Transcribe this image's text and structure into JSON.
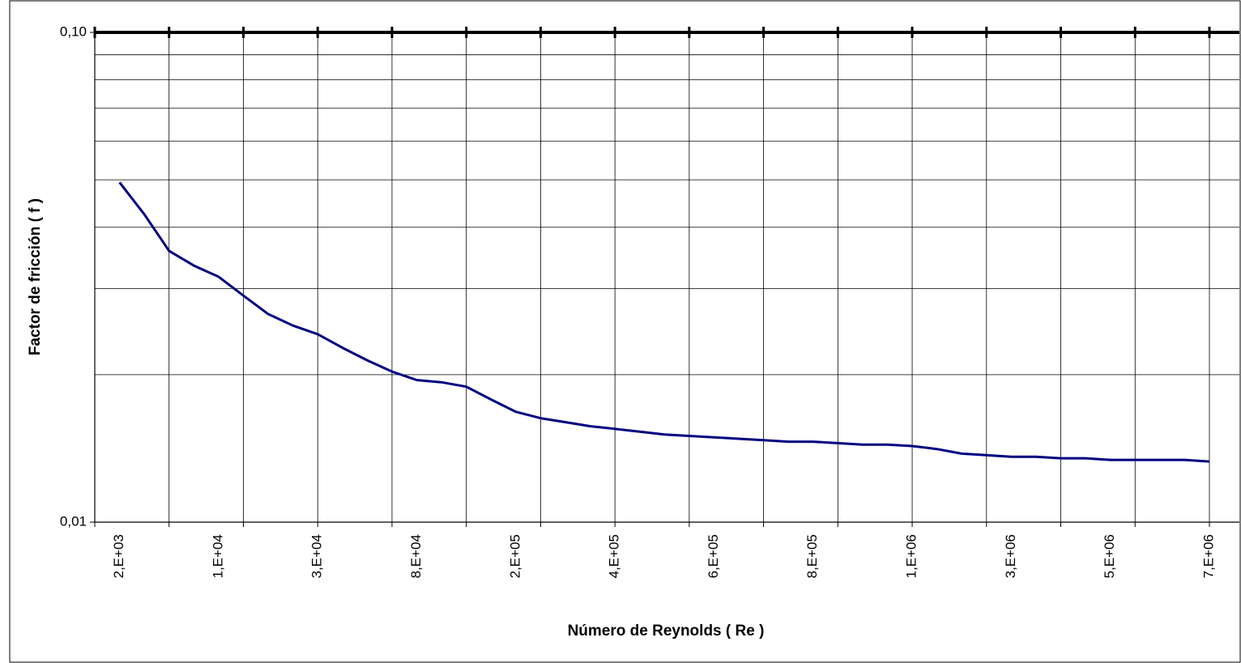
{
  "chart_data": {
    "type": "line",
    "xlabel": "Número de Reynolds ( Re )",
    "ylabel": "Factor de fricción ( f )",
    "categories": [
      "2,E+03",
      null,
      null,
      null,
      "1,E+04",
      null,
      null,
      null,
      "3,E+04",
      null,
      null,
      null,
      "8,E+04",
      null,
      null,
      null,
      "2,E+05",
      null,
      null,
      null,
      "4,E+05",
      null,
      null,
      null,
      "6,E+05",
      null,
      null,
      null,
      "8,E+05",
      null,
      null,
      null,
      "1,E+06",
      null,
      null,
      null,
      "3,E+06",
      null,
      null,
      null,
      "5,E+06",
      null,
      null,
      null,
      "7,E+06"
    ],
    "series": [
      {
        "color": "#000080",
        "values": [
          0.0494,
          0.0425,
          0.0358,
          0.0334,
          0.0317,
          0.029,
          0.0266,
          0.0252,
          0.0242,
          0.0227,
          0.0214,
          0.0203,
          0.0195,
          0.0193,
          0.0189,
          0.0178,
          0.0168,
          0.0163,
          0.016,
          0.0157,
          0.0155,
          0.0153,
          0.0151,
          0.015,
          0.0149,
          0.0148,
          0.0147,
          0.0146,
          0.0146,
          0.0145,
          0.0144,
          0.0144,
          0.0143,
          0.0141,
          0.0138,
          0.0137,
          0.0136,
          0.0136,
          0.0135,
          0.0135,
          0.0134,
          0.0134,
          0.0134,
          0.0134,
          0.0133
        ]
      }
    ],
    "ylim": [
      0.01,
      0.1
    ],
    "log_y": true,
    "yticks": [
      {
        "value": 0.01,
        "label": "0,01"
      },
      {
        "value": 0.1,
        "label": "0,10"
      }
    ],
    "yminor": [
      0.02,
      0.03,
      0.04,
      0.05,
      0.06,
      0.07,
      0.08,
      0.09
    ],
    "grid": true
  }
}
